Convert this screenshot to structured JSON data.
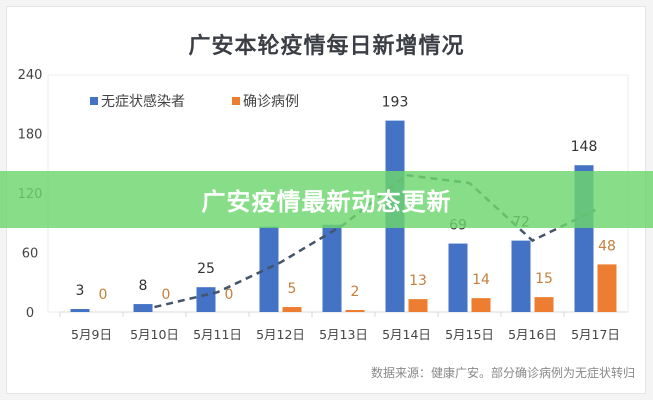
{
  "banner": {
    "text": "广安疫情最新动态更新",
    "color": "#7ed87e"
  },
  "source": "数据来源：健康广安。部分确诊病例为无症状转归",
  "chart_data": {
    "type": "bar",
    "title": "广安本轮疫情每日新增情况",
    "categories": [
      "5月9日",
      "5月10日",
      "5月11日",
      "5月12日",
      "5月13日",
      "5月14日",
      "5月15日",
      "5月16日",
      "5月17日"
    ],
    "series": [
      {
        "name": "无症状感染者",
        "color": "#4472c4",
        "values": [
          3,
          8,
          25,
          86,
          88,
          193,
          69,
          72,
          148
        ],
        "labels": [
          "3",
          "8",
          "25",
          "",
          "",
          "193",
          "69",
          "72",
          "148"
        ]
      },
      {
        "name": "确诊病例",
        "color": "#ed7d31",
        "values": [
          0,
          0,
          0,
          5,
          2,
          13,
          14,
          15,
          48
        ],
        "labels": [
          "0",
          "0",
          "0",
          "5",
          "2",
          "13",
          "14",
          "15",
          "48"
        ]
      }
    ],
    "trendline": {
      "style": "dashed",
      "color": "#44546a",
      "values": [
        null,
        5,
        20,
        50,
        88,
        138,
        130,
        72,
        103
      ]
    },
    "yticks": [
      "0",
      "60",
      "120",
      "180",
      "240"
    ],
    "ylim": [
      0,
      240
    ],
    "legend": "top-left",
    "grid": false
  }
}
